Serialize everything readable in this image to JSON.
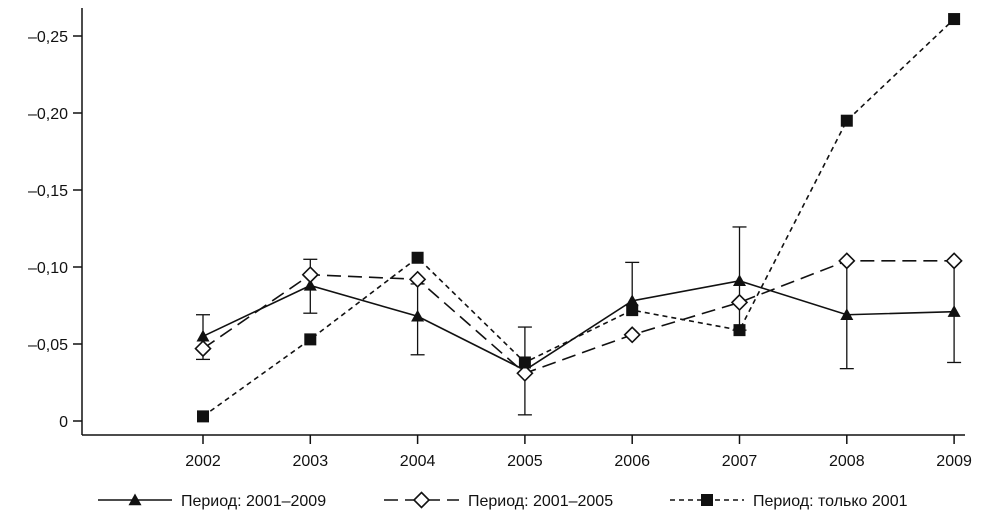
{
  "chart_data": {
    "type": "line",
    "title": "",
    "xlabel": "",
    "ylabel": "",
    "categories": [
      "2002",
      "2003",
      "2004",
      "2005",
      "2006",
      "2007",
      "2008",
      "2009"
    ],
    "ylim": [
      0,
      -0.27
    ],
    "y_axis_inverted": true,
    "yticks": [
      0,
      -0.05,
      -0.1,
      -0.15,
      -0.2,
      -0.25
    ],
    "ytick_labels": [
      "0",
      "–0,05",
      "–0,10",
      "–0,15",
      "–0,20",
      "–0,25"
    ],
    "legend_position": "bottom",
    "grid": false,
    "series": [
      {
        "name": "Период: 2001–2009",
        "marker": "filled-triangle",
        "line_style": "solid",
        "color": "#111111",
        "values": [
          -0.055,
          -0.088,
          -0.068,
          -0.033,
          -0.078,
          -0.091,
          -0.069,
          -0.071
        ],
        "error_low": [
          -0.04,
          -0.07,
          -0.043,
          -0.004,
          null,
          -0.059,
          -0.034,
          -0.038
        ],
        "error_high": [
          -0.069,
          -0.105,
          -0.089,
          -0.061,
          -0.103,
          -0.126,
          -0.104,
          -0.104
        ]
      },
      {
        "name": "Период: 2001–2005",
        "marker": "open-diamond",
        "line_style": "dashed",
        "color": "#111111",
        "values": [
          -0.047,
          -0.095,
          -0.092,
          -0.031,
          -0.056,
          -0.077,
          -0.104,
          -0.104
        ]
      },
      {
        "name": "Период: только 2001",
        "marker": "filled-square",
        "line_style": "dotted",
        "color": "#111111",
        "values": [
          -0.003,
          -0.053,
          -0.106,
          -0.038,
          -0.072,
          -0.059,
          -0.195,
          -0.261
        ]
      }
    ]
  }
}
